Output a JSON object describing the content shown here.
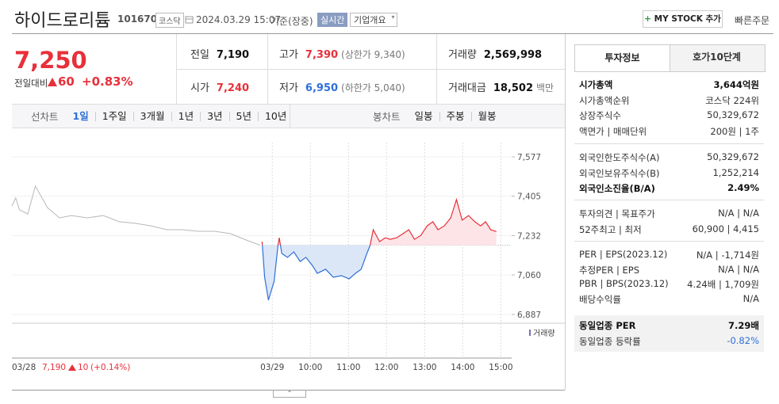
{
  "header": {
    "name": "하이드로리튬",
    "code": "101670",
    "market": "코스닥",
    "datetime": "2024.03.29 15:07",
    "basis": "기준(장중)",
    "realtime": "실시간",
    "overview": "기업개요",
    "mystock": "MY STOCK 추가",
    "quick_order": "빠른주문"
  },
  "price": {
    "current": "7,250",
    "change_label": "전일대비",
    "change": "60",
    "change_rate": "+0.83%"
  },
  "summary": [
    [
      {
        "label": "전일",
        "value": "7,190"
      },
      {
        "label": "고가",
        "value": "7,390",
        "note": "(상한가 9,340)"
      },
      {
        "label": "거래량",
        "value": "2,569,998"
      }
    ],
    [
      {
        "label": "시가",
        "value": "7,240"
      },
      {
        "label": "저가",
        "value": "6,950",
        "note": "(하한가 5,040)"
      },
      {
        "label": "거래대금",
        "value": "18,502",
        "note": "백만"
      }
    ]
  ],
  "toolbar": {
    "line_label": "선차트",
    "line_periods": [
      "1일",
      "1주일",
      "3개월",
      "1년",
      "3년",
      "5년",
      "10년"
    ],
    "candle_label": "봉차트",
    "candle_periods": [
      "일봉",
      "주봉",
      "월봉"
    ]
  },
  "chart_data": {
    "type": "line",
    "ylim": [
      6887,
      7577
    ],
    "yticks": [
      {
        "value": 7577,
        "label": "7,577"
      },
      {
        "value": 7405,
        "label": "7,405"
      },
      {
        "value": 7232,
        "label": "7,232"
      },
      {
        "value": 7060,
        "label": "7,060"
      },
      {
        "value": 6887,
        "label": "6,887"
      }
    ],
    "xlim": [
      -410,
      377
    ],
    "xticks": [
      {
        "value": -410,
        "label": "03/28"
      },
      {
        "value": 0,
        "label": "03/29"
      },
      {
        "value": 60,
        "label": "10:00"
      },
      {
        "value": 120,
        "label": "11:00"
      },
      {
        "value": 180,
        "label": "12:00"
      },
      {
        "value": 240,
        "label": "13:00"
      },
      {
        "value": 300,
        "label": "14:00"
      },
      {
        "value": 360,
        "label": "15:00"
      }
    ],
    "grid": true,
    "baseline": 7190,
    "up_color": "#e8303a",
    "down_color": "#2f6fd8",
    "up_fill": "#fde4e6",
    "down_fill": "#dbe7f7",
    "series": [
      {
        "color": "#b8b8b8",
        "x": [
          -410,
          -404,
          -398,
          -385,
          -373,
          -366,
          -354,
          -335,
          -316,
          -291,
          -266,
          -241,
          -216,
          -191,
          -166,
          -141,
          -116,
          -91,
          -66,
          -41,
          -19
        ],
        "values": [
          7362,
          7397,
          7345,
          7327,
          7449,
          7414,
          7355,
          7310,
          7320,
          7310,
          7320,
          7293,
          7286,
          7275,
          7258,
          7258,
          7251,
          7251,
          7241,
          7213,
          7190
        ]
      },
      {
        "x": [
          -16,
          -12,
          -6,
          3,
          9,
          11,
          15,
          24,
          34,
          44,
          53,
          63,
          71,
          84,
          96,
          109,
          121,
          131,
          140,
          149,
          154,
          159,
          169,
          178,
          186,
          196,
          206,
          215,
          224,
          234,
          244,
          253,
          261,
          271,
          281,
          290,
          299,
          309,
          319,
          328,
          336,
          344,
          353
        ],
        "values": [
          7206,
          7050,
          6950,
          7033,
          7189,
          7223,
          7154,
          7137,
          7161,
          7119,
          7137,
          7102,
          7067,
          7085,
          7050,
          7057,
          7043,
          7067,
          7085,
          7154,
          7189,
          7258,
          7206,
          7223,
          7216,
          7223,
          7241,
          7258,
          7216,
          7233,
          7275,
          7293,
          7258,
          7275,
          7310,
          7390,
          7300,
          7320,
          7293,
          7275,
          7293,
          7258,
          7250
        ]
      }
    ],
    "volume_label": "거래량",
    "prev_info": {
      "close": "7,190",
      "change": "10",
      "rate": "(+0.14%)"
    }
  },
  "side": {
    "tabs": [
      "투자정보",
      "호가10단계"
    ],
    "groups": [
      [
        [
          "시가총액",
          "3,644억원"
        ],
        [
          "시가총액순위",
          "코스닥 224위"
        ],
        [
          "상장주식수",
          "50,329,672"
        ],
        [
          "액면가 | 매매단위",
          "200원 | 1주"
        ]
      ],
      [
        [
          "외국인한도주식수(A)",
          "50,329,672"
        ],
        [
          "외국인보유주식수(B)",
          "1,252,214"
        ],
        [
          "외국인소진율(B/A)",
          "2.49%"
        ]
      ],
      [
        [
          "투자의견 | 목표주가",
          "N/A | N/A"
        ],
        [
          "52주최고 | 최저",
          "60,900 | 4,415"
        ]
      ],
      [
        [
          "PER | EPS(2023.12)",
          "N/A | -1,714원"
        ],
        [
          "추정PER | EPS",
          "N/A | N/A"
        ],
        [
          "PBR | BPS(2023.12)",
          "4.24배 | 1,709원"
        ],
        [
          "배당수익률",
          "N/A"
        ]
      ],
      [
        [
          "동일업종 PER",
          "7.29배"
        ],
        [
          "동일업종 등락률",
          "-0.82%"
        ]
      ]
    ]
  }
}
